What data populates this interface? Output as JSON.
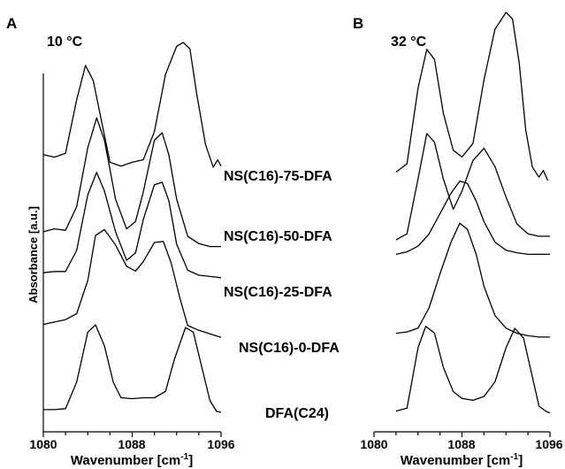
{
  "chart_data": [
    {
      "type": "line",
      "panel": "A",
      "title": "10 °C",
      "xlabel": "Wavenumber [cm-1]",
      "ylabel": "Absorbance [a.u.]",
      "xlim": [
        1080,
        1096
      ],
      "xticks": [
        "1080",
        "1088",
        "1096"
      ],
      "x_minor_ticks": [
        1082,
        1084,
        1086,
        1090,
        1092,
        1094
      ],
      "grid": false,
      "series": [
        {
          "name": "NS(C16)-75-DFA",
          "x": [
            1080,
            1081,
            1082,
            1083,
            1083.8,
            1084.5,
            1085.2,
            1086,
            1087,
            1088,
            1089,
            1090,
            1091,
            1092,
            1092.6,
            1093.2,
            1093.8,
            1094.6,
            1095.3,
            1095.7,
            1096
          ],
          "y": [
            0.12,
            0.1,
            0.13,
            0.55,
            0.82,
            0.7,
            0.4,
            0.06,
            0.03,
            0.06,
            0.08,
            0.3,
            0.75,
            0.97,
            1.0,
            0.95,
            0.6,
            0.2,
            0.02,
            0.08,
            0.03
          ]
        },
        {
          "name": "NS(C16)-50-DFA",
          "x": [
            1080,
            1081,
            1082,
            1083,
            1084,
            1084.8,
            1085.5,
            1086.5,
            1087.5,
            1088.3,
            1089,
            1090,
            1090.7,
            1091.3,
            1092,
            1093,
            1094,
            1095,
            1096
          ],
          "y": [
            0.18,
            0.2,
            0.19,
            0.35,
            0.75,
            0.95,
            0.8,
            0.4,
            0.2,
            0.25,
            0.45,
            0.8,
            0.85,
            0.7,
            0.4,
            0.15,
            0.1,
            0.08,
            0.08
          ]
        },
        {
          "name": "NS(C16)-25-DFA",
          "x": [
            1080,
            1081,
            1082,
            1083,
            1084,
            1084.8,
            1085.5,
            1086.5,
            1087.5,
            1088.3,
            1089,
            1090,
            1090.7,
            1091.3,
            1092,
            1093,
            1094,
            1095,
            1096
          ],
          "y": [
            0.12,
            0.13,
            0.13,
            0.3,
            0.75,
            0.93,
            0.78,
            0.45,
            0.22,
            0.28,
            0.55,
            0.83,
            0.85,
            0.7,
            0.35,
            0.14,
            0.1,
            0.09,
            0.08
          ]
        },
        {
          "name": "NS(C16)-0-DFA",
          "x": [
            1080,
            1081,
            1082,
            1083,
            1084,
            1084.7,
            1085.5,
            1086.5,
            1087.5,
            1088.3,
            1089,
            1090,
            1090.8,
            1091.5,
            1092.3,
            1093,
            1094,
            1095,
            1096
          ],
          "y": [
            0.13,
            0.15,
            0.17,
            0.22,
            0.5,
            0.88,
            0.93,
            0.8,
            0.62,
            0.58,
            0.66,
            0.82,
            0.83,
            0.65,
            0.35,
            0.12,
            0.08,
            0.05,
            0.02
          ]
        },
        {
          "name": "DFA(C24)",
          "x": [
            1080,
            1081,
            1082,
            1083,
            1084,
            1084.7,
            1085.5,
            1086.3,
            1087,
            1088,
            1089,
            1090,
            1091,
            1091.8,
            1092.8,
            1093.5,
            1094.3,
            1095,
            1095.6,
            1096
          ],
          "y": [
            0.05,
            0.05,
            0.06,
            0.35,
            0.9,
            0.98,
            0.75,
            0.35,
            0.18,
            0.17,
            0.18,
            0.18,
            0.25,
            0.6,
            0.95,
            0.9,
            0.5,
            0.15,
            0.03,
            0.02
          ]
        }
      ]
    },
    {
      "type": "line",
      "panel": "B",
      "title": "32 °C",
      "xlabel": "Wavenumber [cm-1]",
      "xlim": [
        1080,
        1096
      ],
      "xticks": [
        "1080",
        "1088",
        "1096"
      ],
      "x_minor_ticks": [
        1082,
        1084,
        1086,
        1090,
        1092,
        1094
      ],
      "grid": false,
      "series": [
        {
          "name": "NS(C16)-75-DFA",
          "x": [
            1082,
            1083,
            1084,
            1084.8,
            1085.5,
            1086.3,
            1087.2,
            1088,
            1089,
            1090,
            1091,
            1092,
            1092.6,
            1093.2,
            1093.8,
            1094.4,
            1095,
            1095.4,
            1095.8
          ],
          "y": [
            0.05,
            0.1,
            0.55,
            0.78,
            0.72,
            0.4,
            0.18,
            0.14,
            0.22,
            0.6,
            0.9,
            1.0,
            0.96,
            0.7,
            0.3,
            0.08,
            0.02,
            0.06,
            0.0
          ]
        },
        {
          "name": "NS(C16)-50-DFA",
          "x": [
            1082,
            1083,
            1084,
            1084.8,
            1085.5,
            1086.3,
            1087.2,
            1088,
            1089,
            1090,
            1091,
            1092,
            1093,
            1094,
            1095,
            1096
          ],
          "y": [
            0.05,
            0.1,
            0.55,
            0.92,
            0.85,
            0.55,
            0.3,
            0.45,
            0.7,
            0.8,
            0.65,
            0.4,
            0.18,
            0.1,
            0.08,
            0.08
          ]
        },
        {
          "name": "NS(C16)-25-DFA",
          "x": [
            1082,
            1083,
            1084,
            1085,
            1086,
            1087,
            1087.8,
            1088.5,
            1089.3,
            1090,
            1091,
            1092,
            1093,
            1094,
            1095,
            1096
          ],
          "y": [
            0.05,
            0.08,
            0.15,
            0.3,
            0.55,
            0.8,
            0.95,
            0.92,
            0.7,
            0.45,
            0.2,
            0.1,
            0.07,
            0.05,
            0.05,
            0.05
          ]
        },
        {
          "name": "NS(C16)-0-DFA",
          "x": [
            1082,
            1083,
            1084,
            1085,
            1086,
            1087,
            1087.8,
            1088.5,
            1089.3,
            1090,
            1091,
            1092,
            1093,
            1094,
            1095,
            1096
          ],
          "y": [
            0.08,
            0.09,
            0.12,
            0.28,
            0.55,
            0.8,
            0.95,
            0.9,
            0.7,
            0.45,
            0.22,
            0.12,
            0.08,
            0.06,
            0.05,
            0.05
          ]
        },
        {
          "name": "DFA(C24)",
          "x": [
            1082,
            1083,
            1084,
            1084.7,
            1085.5,
            1086.3,
            1087.2,
            1088,
            1089,
            1090,
            1091,
            1092,
            1092.8,
            1093.6,
            1094.4,
            1095,
            1095.6,
            1096
          ],
          "y": [
            0.05,
            0.08,
            0.7,
            0.92,
            0.85,
            0.5,
            0.25,
            0.18,
            0.16,
            0.2,
            0.35,
            0.7,
            0.9,
            0.8,
            0.4,
            0.1,
            0.05,
            0.03
          ]
        }
      ]
    }
  ],
  "figure": {
    "panel_a": {
      "letter": "A",
      "temperature": "10 °C"
    },
    "panel_b": {
      "letter": "B",
      "temperature": "32 °C"
    },
    "xlabel": "Wavenumber [cm",
    "xlabel_sup": "-1",
    "xlabel_close": "]",
    "ylabel": "Absorbance [a.u.]",
    "ticks": {
      "t0": "1080",
      "t1": "1088",
      "t2": "1096"
    },
    "samples": [
      "NS(C16)-75-DFA",
      "NS(C16)-50-DFA",
      "NS(C16)-25-DFA",
      "NS(C16)-0-DFA",
      "DFA(C24)"
    ]
  }
}
